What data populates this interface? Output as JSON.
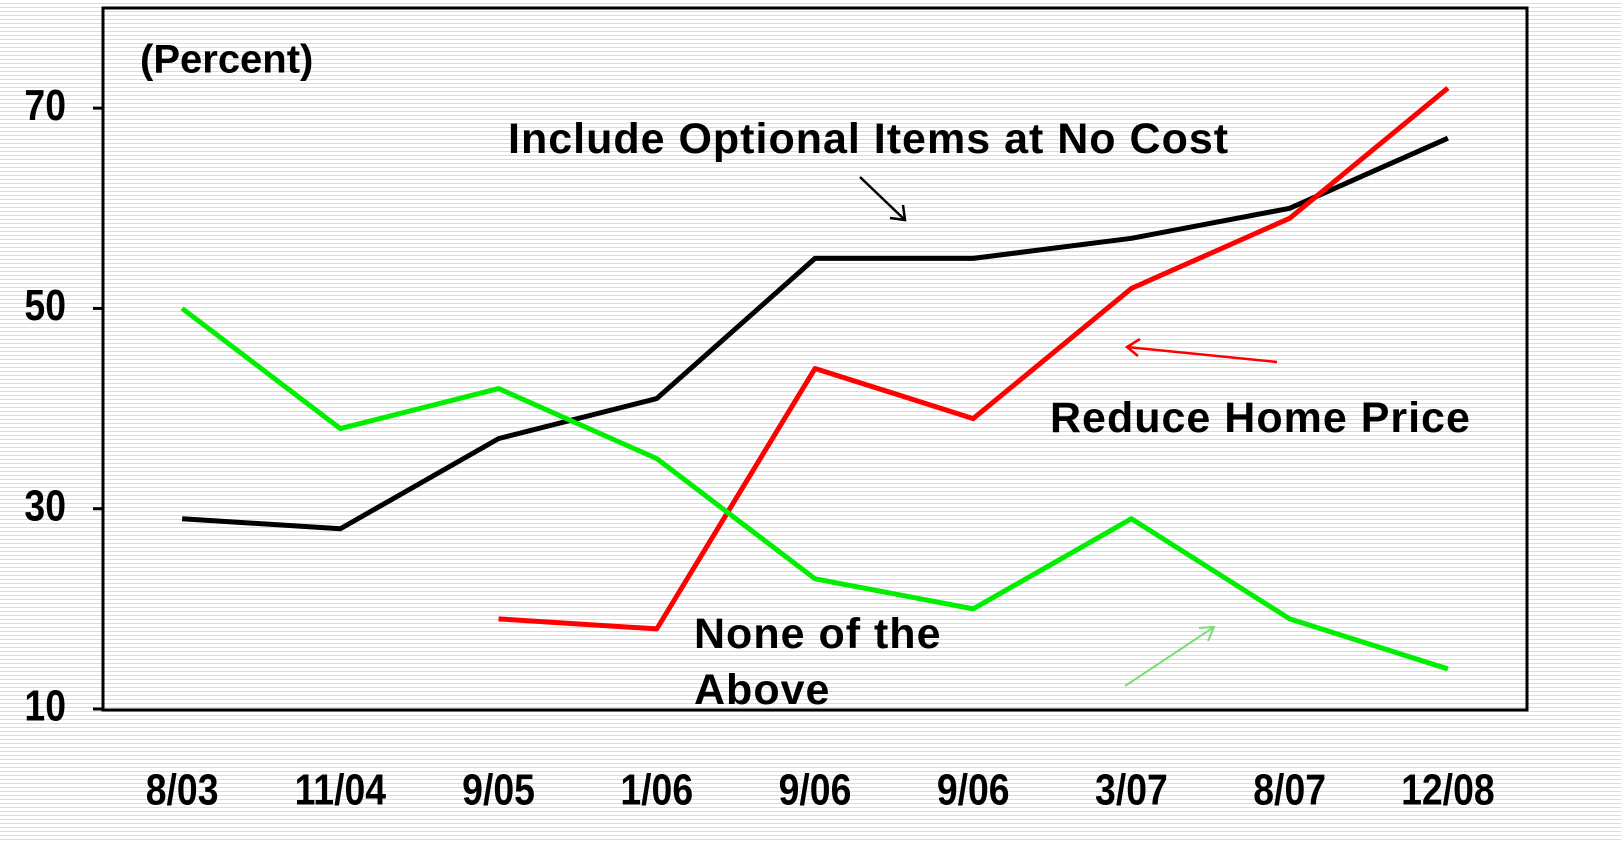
{
  "chart_data": {
    "type": "line",
    "y_label": "(Percent)",
    "categories": [
      "8/03",
      "11/04",
      "9/05",
      "1/06",
      "9/06",
      "9/06",
      "3/07",
      "8/07",
      "12/08"
    ],
    "series": [
      {
        "name": "Include Optional Items at No Cost",
        "color": "#000000",
        "values": [
          29,
          28,
          37,
          41,
          55,
          55,
          57,
          60,
          67
        ]
      },
      {
        "name": "Reduce Home Price",
        "color": "#ff0000",
        "values": [
          null,
          null,
          19,
          18,
          44,
          39,
          52,
          59,
          72
        ]
      },
      {
        "name": "None of the Above",
        "color": "#00ee00",
        "values": [
          50,
          38,
          42,
          35,
          23,
          20,
          29,
          19,
          14
        ]
      }
    ],
    "ylim": [
      10,
      80
    ],
    "yticks": [
      10,
      30,
      50,
      70
    ],
    "grid": false
  }
}
